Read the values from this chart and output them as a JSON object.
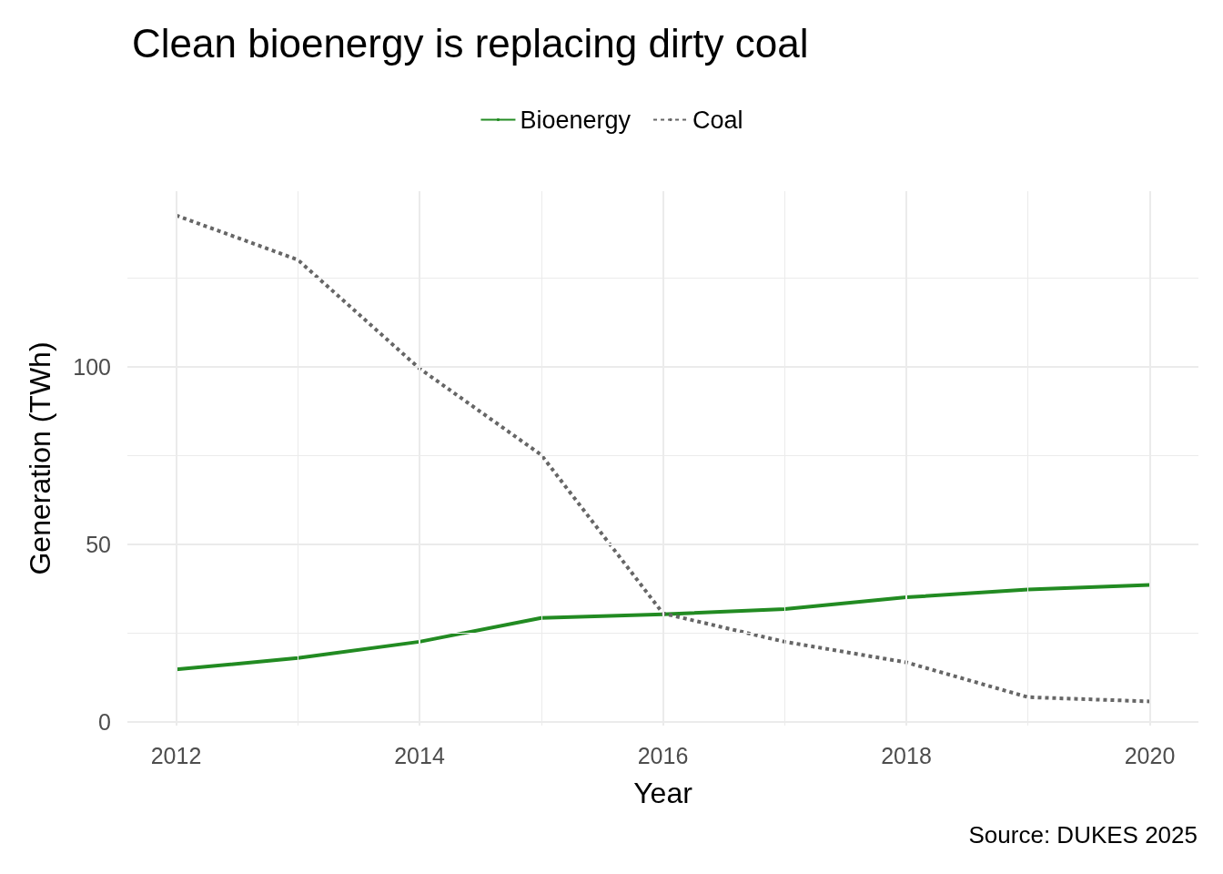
{
  "chart_data": {
    "type": "line",
    "title": "Clean bioenergy is replacing dirty coal",
    "xlabel": "Year",
    "ylabel": "Generation (TWh)",
    "x": [
      2012,
      2013,
      2014,
      2015,
      2016,
      2017,
      2018,
      2019,
      2020
    ],
    "series": [
      {
        "name": "Bioenergy",
        "color": "#228b22",
        "line_style": "solid",
        "values": [
          14.8,
          18.0,
          22.6,
          29.3,
          30.3,
          31.8,
          35.1,
          37.3,
          38.6
        ]
      },
      {
        "name": "Coal",
        "color": "#666666",
        "line_style": "dashed",
        "values": [
          142.6,
          130.1,
          99.5,
          75.2,
          30.6,
          22.6,
          16.8,
          7.0,
          5.8
        ]
      }
    ],
    "xlim": [
      2011.6,
      2020.4
    ],
    "xticks": [
      2012,
      {
        "value": 2013,
        "label": null
      },
      2014,
      {
        "value": 2015,
        "label": null
      },
      2016,
      {
        "value": 2017,
        "label": null
      },
      2018,
      {
        "value": 2019,
        "label": null
      },
      2020
    ],
    "ylim": [
      -1,
      149.4
    ],
    "yticks": [
      0,
      {
        "value": 25,
        "label": null
      },
      50,
      {
        "value": 75,
        "label": null
      },
      100,
      {
        "value": 125,
        "label": null
      }
    ],
    "grid": true,
    "legend": "top",
    "marker": "none",
    "annotations": [
      "Source: DUKES 2025"
    ]
  }
}
